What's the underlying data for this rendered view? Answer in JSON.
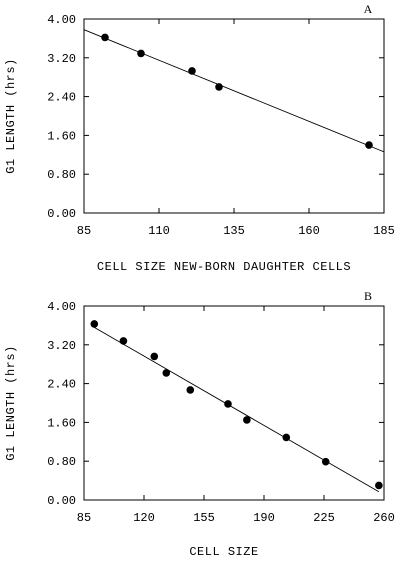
{
  "chart_data": [
    {
      "type": "scatter",
      "panel_label": "A",
      "title": "",
      "xlabel": "CELL SIZE NEW-BORN DAUGHTER CELLS",
      "ylabel": "G1 LENGTH (hrs)",
      "xlim": [
        85,
        185
      ],
      "ylim": [
        0,
        4
      ],
      "xticks": [
        85,
        110,
        135,
        160,
        185
      ],
      "yticks": [
        "0.00",
        "0.80",
        "1.60",
        "2.40",
        "3.20",
        "4.00"
      ],
      "series": [
        {
          "x": [
            92,
            104,
            121,
            130,
            180
          ],
          "y": [
            3.62,
            3.29,
            2.93,
            2.6,
            1.4
          ]
        }
      ],
      "fit_line": {
        "x": [
          85,
          185
        ],
        "y": [
          3.78,
          1.26
        ]
      },
      "grid": false
    },
    {
      "type": "scatter",
      "panel_label": "B",
      "title": "",
      "xlabel": "CELL SIZE",
      "ylabel": "G1 LENGTH (hrs)",
      "xlim": [
        85,
        260
      ],
      "ylim": [
        0,
        4
      ],
      "xticks": [
        85,
        120,
        155,
        190,
        225,
        260
      ],
      "yticks": [
        "0.00",
        "0.80",
        "1.60",
        "2.40",
        "3.20",
        "4.00"
      ],
      "series": [
        {
          "x": [
            91,
            108,
            126,
            133,
            147,
            169,
            180,
            203,
            226,
            257
          ],
          "y": [
            3.63,
            3.28,
            2.96,
            2.62,
            2.27,
            1.98,
            1.65,
            1.29,
            0.79,
            0.3
          ]
        }
      ],
      "fit_line": {
        "x": [
          90,
          257
        ],
        "y": [
          3.58,
          0.17
        ]
      },
      "grid": false
    }
  ]
}
